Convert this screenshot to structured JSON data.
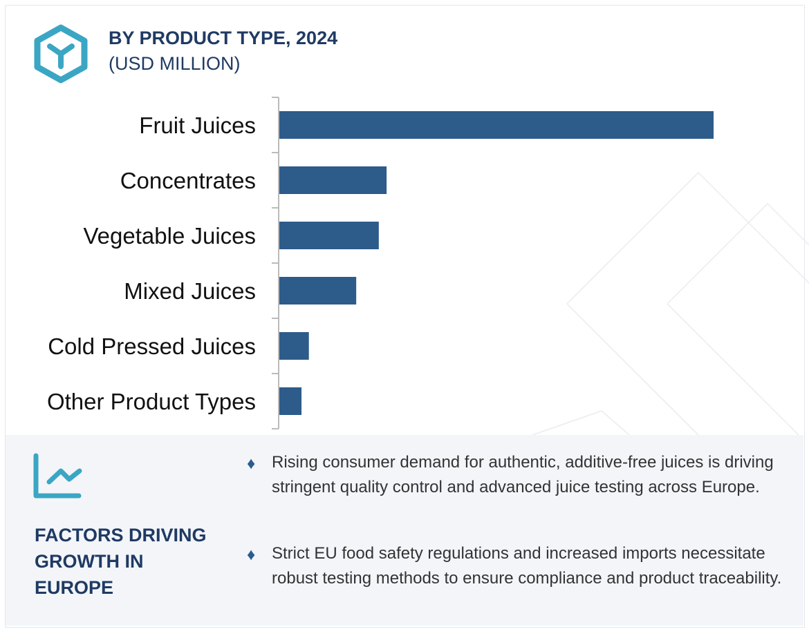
{
  "header": {
    "title": "BY PRODUCT TYPE, 2024",
    "subtitle": "(USD MILLION)",
    "icon": "cube-icon"
  },
  "colors": {
    "bar": "#2d5b8a",
    "accent": "#3aa6c4",
    "title": "#1f3a63",
    "panel": "#f3f5f9"
  },
  "chart_data": {
    "type": "bar",
    "orientation": "horizontal",
    "title": "BY PRODUCT TYPE, 2024",
    "subtitle": "(USD MILLION)",
    "categories": [
      "Fruit Juices",
      "Concentrates",
      "Vegetable Juices",
      "Mixed Juices",
      "Cold Pressed Juices",
      "Other Product Types"
    ],
    "values": [
      100,
      24.7,
      22.9,
      17.7,
      6.8,
      5.1
    ],
    "value_note": "relative bar lengths, no axis values printed",
    "xlim": [
      0,
      100
    ],
    "grid": false,
    "legend": "none"
  },
  "factors": {
    "icon": "line-chart-icon",
    "title": "FACTORS DRIVING GROWTH IN EUROPE",
    "bullets": [
      "Rising consumer demand for authentic, additive-free juices is driving stringent quality control and advanced juice testing across Europe.",
      "Strict EU food safety regulations and increased imports necessitate robust testing methods to ensure compliance and product traceability."
    ],
    "bullet_glyph": "♦"
  }
}
